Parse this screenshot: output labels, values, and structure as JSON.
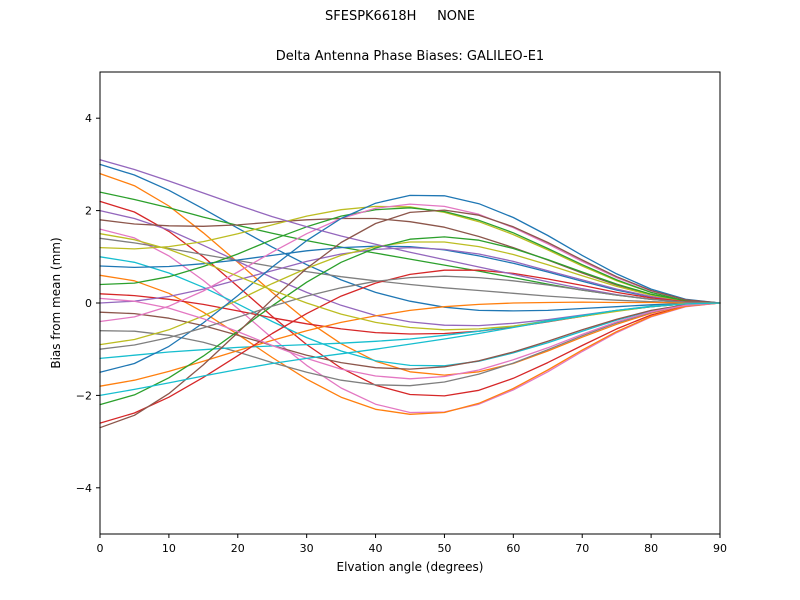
{
  "figure": {
    "suptitle": "SFESPK6618H     NONE"
  },
  "chart_data": {
    "type": "line",
    "title": "Delta Antenna Phase Biases: GALILEO-E1",
    "xlabel": "Elvation angle (degrees)",
    "ylabel": "Bias from mean (mm)",
    "xlim": [
      0,
      90
    ],
    "ylim": [
      -5,
      5
    ],
    "xticks": [
      0,
      10,
      20,
      30,
      40,
      50,
      60,
      70,
      80,
      90
    ],
    "yticks": [
      -4,
      -2,
      0,
      2,
      4
    ],
    "grid": false,
    "legend": "none",
    "x": [
      0,
      5,
      10,
      15,
      20,
      25,
      30,
      35,
      40,
      45,
      50,
      55,
      60,
      65,
      70,
      75,
      80,
      85,
      90
    ],
    "series": [
      {
        "name": "line-01",
        "color": "#1f77b4",
        "values": [
          3.0,
          2.77,
          2.44,
          2.04,
          1.62,
          1.21,
          0.83,
          0.5,
          0.23,
          0.04,
          -0.09,
          -0.16,
          -0.17,
          -0.16,
          -0.12,
          -0.08,
          -0.04,
          -0.01,
          0.0
        ]
      },
      {
        "name": "line-02",
        "color": "#ff7f0e",
        "values": [
          2.8,
          2.54,
          2.1,
          1.52,
          0.88,
          0.23,
          -0.38,
          -0.88,
          -1.26,
          -1.49,
          -1.56,
          -1.49,
          -1.31,
          -1.04,
          -0.74,
          -0.46,
          -0.22,
          -0.05,
          0.0
        ]
      },
      {
        "name": "line-03",
        "color": "#2ca02c",
        "values": [
          2.4,
          2.24,
          2.06,
          1.86,
          1.68,
          1.51,
          1.35,
          1.21,
          1.08,
          0.95,
          0.82,
          0.69,
          0.55,
          0.41,
          0.28,
          0.17,
          0.08,
          0.02,
          0.0
        ]
      },
      {
        "name": "line-04",
        "color": "#d62728",
        "values": [
          2.2,
          1.97,
          1.55,
          1.0,
          0.36,
          -0.29,
          -0.9,
          -1.41,
          -1.78,
          -1.98,
          -2.01,
          -1.89,
          -1.63,
          -1.29,
          -0.92,
          -0.56,
          -0.26,
          -0.07,
          0.0
        ]
      },
      {
        "name": "line-05",
        "color": "#9467bd",
        "values": [
          2.0,
          1.83,
          1.58,
          1.25,
          0.9,
          0.55,
          0.23,
          -0.05,
          -0.27,
          -0.41,
          -0.48,
          -0.49,
          -0.44,
          -0.36,
          -0.26,
          -0.16,
          -0.08,
          -0.02,
          0.0
        ]
      },
      {
        "name": "line-06",
        "color": "#8c564b",
        "values": [
          1.8,
          1.71,
          1.67,
          1.66,
          1.69,
          1.75,
          1.8,
          1.83,
          1.83,
          1.76,
          1.64,
          1.44,
          1.2,
          0.93,
          0.65,
          0.39,
          0.18,
          0.05,
          0.0
        ]
      },
      {
        "name": "line-07",
        "color": "#e377c2",
        "values": [
          1.6,
          1.41,
          1.02,
          0.49,
          -0.12,
          -0.76,
          -1.35,
          -1.84,
          -2.19,
          -2.37,
          -2.36,
          -2.19,
          -1.88,
          -1.49,
          -1.05,
          -0.64,
          -0.3,
          -0.08,
          0.0
        ]
      },
      {
        "name": "line-08",
        "color": "#7f7f7f",
        "values": [
          1.4,
          1.3,
          1.18,
          1.05,
          0.92,
          0.79,
          0.68,
          0.57,
          0.48,
          0.4,
          0.33,
          0.27,
          0.21,
          0.15,
          0.1,
          0.06,
          0.03,
          0.01,
          0.0
        ]
      },
      {
        "name": "line-09",
        "color": "#bcbd22",
        "values": [
          1.2,
          1.17,
          1.22,
          1.33,
          1.5,
          1.69,
          1.88,
          2.02,
          2.09,
          2.08,
          1.96,
          1.76,
          1.48,
          1.15,
          0.8,
          0.48,
          0.23,
          0.06,
          0.0
        ]
      },
      {
        "name": "line-10",
        "color": "#17becf",
        "values": [
          1.0,
          0.88,
          0.65,
          0.34,
          -0.02,
          -0.4,
          -0.75,
          -1.04,
          -1.25,
          -1.35,
          -1.36,
          -1.26,
          -1.08,
          -0.86,
          -0.61,
          -0.37,
          -0.17,
          -0.04,
          0.0
        ]
      },
      {
        "name": "line-11",
        "color": "#1f77b4",
        "values": [
          0.8,
          0.77,
          0.79,
          0.85,
          0.93,
          1.03,
          1.13,
          1.2,
          1.23,
          1.22,
          1.15,
          1.02,
          0.86,
          0.67,
          0.47,
          0.28,
          0.13,
          0.03,
          0.0
        ]
      },
      {
        "name": "line-12",
        "color": "#ff7f0e",
        "values": [
          0.6,
          0.48,
          0.21,
          -0.2,
          -0.68,
          -1.18,
          -1.65,
          -2.04,
          -2.3,
          -2.41,
          -2.37,
          -2.17,
          -1.85,
          -1.45,
          -1.02,
          -0.62,
          -0.29,
          -0.07,
          0.0
        ]
      },
      {
        "name": "line-13",
        "color": "#2ca02c",
        "values": [
          0.4,
          0.43,
          0.57,
          0.79,
          1.06,
          1.37,
          1.65,
          1.88,
          2.02,
          2.06,
          1.98,
          1.79,
          1.52,
          1.18,
          0.83,
          0.5,
          0.23,
          0.06,
          0.0
        ]
      },
      {
        "name": "line-14",
        "color": "#d62728",
        "values": [
          0.2,
          0.16,
          0.08,
          -0.03,
          -0.17,
          -0.32,
          -0.45,
          -0.56,
          -0.64,
          -0.67,
          -0.66,
          -0.61,
          -0.52,
          -0.41,
          -0.29,
          -0.17,
          -0.08,
          -0.02,
          0.0
        ]
      },
      {
        "name": "line-15",
        "color": "#9467bd",
        "values": [
          0.0,
          0.04,
          0.14,
          0.3,
          0.5,
          0.7,
          0.9,
          1.06,
          1.16,
          1.2,
          1.16,
          1.06,
          0.9,
          0.7,
          0.5,
          0.3,
          0.14,
          0.04,
          0.0
        ]
      },
      {
        "name": "line-16",
        "color": "#8c564b",
        "values": [
          -0.2,
          -0.23,
          -0.33,
          -0.49,
          -0.7,
          -0.92,
          -1.13,
          -1.29,
          -1.4,
          -1.43,
          -1.38,
          -1.25,
          -1.06,
          -0.83,
          -0.58,
          -0.35,
          -0.16,
          -0.04,
          0.0
        ]
      },
      {
        "name": "line-17",
        "color": "#e377c2",
        "values": [
          -0.4,
          -0.3,
          -0.07,
          0.26,
          0.67,
          1.1,
          1.5,
          1.83,
          2.05,
          2.14,
          2.09,
          1.92,
          1.63,
          1.28,
          0.9,
          0.55,
          0.26,
          0.07,
          0.0
        ]
      },
      {
        "name": "line-18",
        "color": "#7f7f7f",
        "values": [
          -0.6,
          -0.61,
          -0.7,
          -0.85,
          -1.06,
          -1.29,
          -1.5,
          -1.67,
          -1.77,
          -1.79,
          -1.71,
          -1.54,
          -1.3,
          -1.01,
          -0.71,
          -0.43,
          -0.2,
          -0.05,
          0.0
        ]
      },
      {
        "name": "line-19",
        "color": "#bcbd22",
        "values": [
          -0.9,
          -0.79,
          -0.58,
          -0.28,
          0.06,
          0.42,
          0.75,
          1.03,
          1.22,
          1.32,
          1.32,
          1.22,
          1.05,
          0.83,
          0.59,
          0.36,
          0.17,
          0.04,
          0.0
        ]
      },
      {
        "name": "line-20",
        "color": "#17becf",
        "values": [
          -1.2,
          -1.13,
          -1.06,
          -1.01,
          -0.96,
          -0.93,
          -0.9,
          -0.87,
          -0.83,
          -0.78,
          -0.7,
          -0.61,
          -0.5,
          -0.38,
          -0.27,
          -0.16,
          -0.07,
          -0.02,
          0.0
        ]
      },
      {
        "name": "line-21",
        "color": "#1f77b4",
        "values": [
          -1.5,
          -1.31,
          -0.94,
          -0.43,
          0.16,
          0.78,
          1.35,
          1.83,
          2.16,
          2.33,
          2.32,
          2.15,
          1.85,
          1.46,
          1.03,
          0.63,
          0.3,
          0.08,
          0.0
        ]
      },
      {
        "name": "line-22",
        "color": "#ff7f0e",
        "values": [
          -1.8,
          -1.67,
          -1.48,
          -1.26,
          -1.03,
          -0.81,
          -0.6,
          -0.42,
          -0.28,
          -0.16,
          -0.08,
          -0.03,
          0.0,
          0.01,
          0.02,
          0.01,
          0.01,
          0.0,
          0.0
        ]
      },
      {
        "name": "line-23",
        "color": "#2ca02c",
        "values": [
          -2.2,
          -1.99,
          -1.62,
          -1.15,
          -0.61,
          -0.06,
          0.45,
          0.88,
          1.19,
          1.38,
          1.43,
          1.36,
          1.18,
          0.94,
          0.67,
          0.41,
          0.19,
          0.05,
          0.0
        ]
      },
      {
        "name": "line-24",
        "color": "#d62728",
        "values": [
          -2.6,
          -2.38,
          -2.04,
          -1.61,
          -1.14,
          -0.66,
          -0.23,
          0.15,
          0.43,
          0.62,
          0.71,
          0.71,
          0.64,
          0.52,
          0.38,
          0.23,
          0.11,
          0.03,
          0.0
        ]
      },
      {
        "name": "line-25",
        "color": "#9467bd",
        "values": [
          3.1,
          2.89,
          2.64,
          2.38,
          2.12,
          1.87,
          1.65,
          1.45,
          1.27,
          1.1,
          0.94,
          0.78,
          0.62,
          0.46,
          0.31,
          0.18,
          0.08,
          0.02,
          0.0
        ]
      },
      {
        "name": "line-26",
        "color": "#8c564b",
        "values": [
          -2.7,
          -2.43,
          -1.96,
          -1.34,
          -0.64,
          0.08,
          0.75,
          1.31,
          1.72,
          1.96,
          2.01,
          1.9,
          1.65,
          1.31,
          0.93,
          0.57,
          0.27,
          0.07,
          0.0
        ]
      },
      {
        "name": "line-27",
        "color": "#e377c2",
        "values": [
          0.1,
          0.04,
          -0.11,
          -0.34,
          -0.62,
          -0.92,
          -1.2,
          -1.43,
          -1.58,
          -1.64,
          -1.59,
          -1.45,
          -1.23,
          -0.97,
          -0.68,
          -0.41,
          -0.19,
          -0.05,
          0.0
        ]
      },
      {
        "name": "line-28",
        "color": "#7f7f7f",
        "values": [
          -1.0,
          -0.91,
          -0.75,
          -0.54,
          -0.31,
          -0.07,
          0.15,
          0.33,
          0.47,
          0.55,
          0.58,
          0.55,
          0.48,
          0.39,
          0.28,
          0.17,
          0.08,
          0.02,
          0.0
        ]
      },
      {
        "name": "line-29",
        "color": "#bcbd22",
        "values": [
          1.5,
          1.37,
          1.16,
          0.88,
          0.58,
          0.28,
          0.0,
          -0.24,
          -0.42,
          -0.53,
          -0.58,
          -0.56,
          -0.5,
          -0.4,
          -0.29,
          -0.18,
          -0.08,
          -0.02,
          0.0
        ]
      },
      {
        "name": "line-30",
        "color": "#17becf",
        "values": [
          -2.0,
          -1.87,
          -1.73,
          -1.58,
          -1.44,
          -1.31,
          -1.2,
          -1.1,
          -1.0,
          -0.89,
          -0.78,
          -0.66,
          -0.53,
          -0.4,
          -0.28,
          -0.16,
          -0.08,
          -0.02,
          0.0
        ]
      }
    ]
  }
}
